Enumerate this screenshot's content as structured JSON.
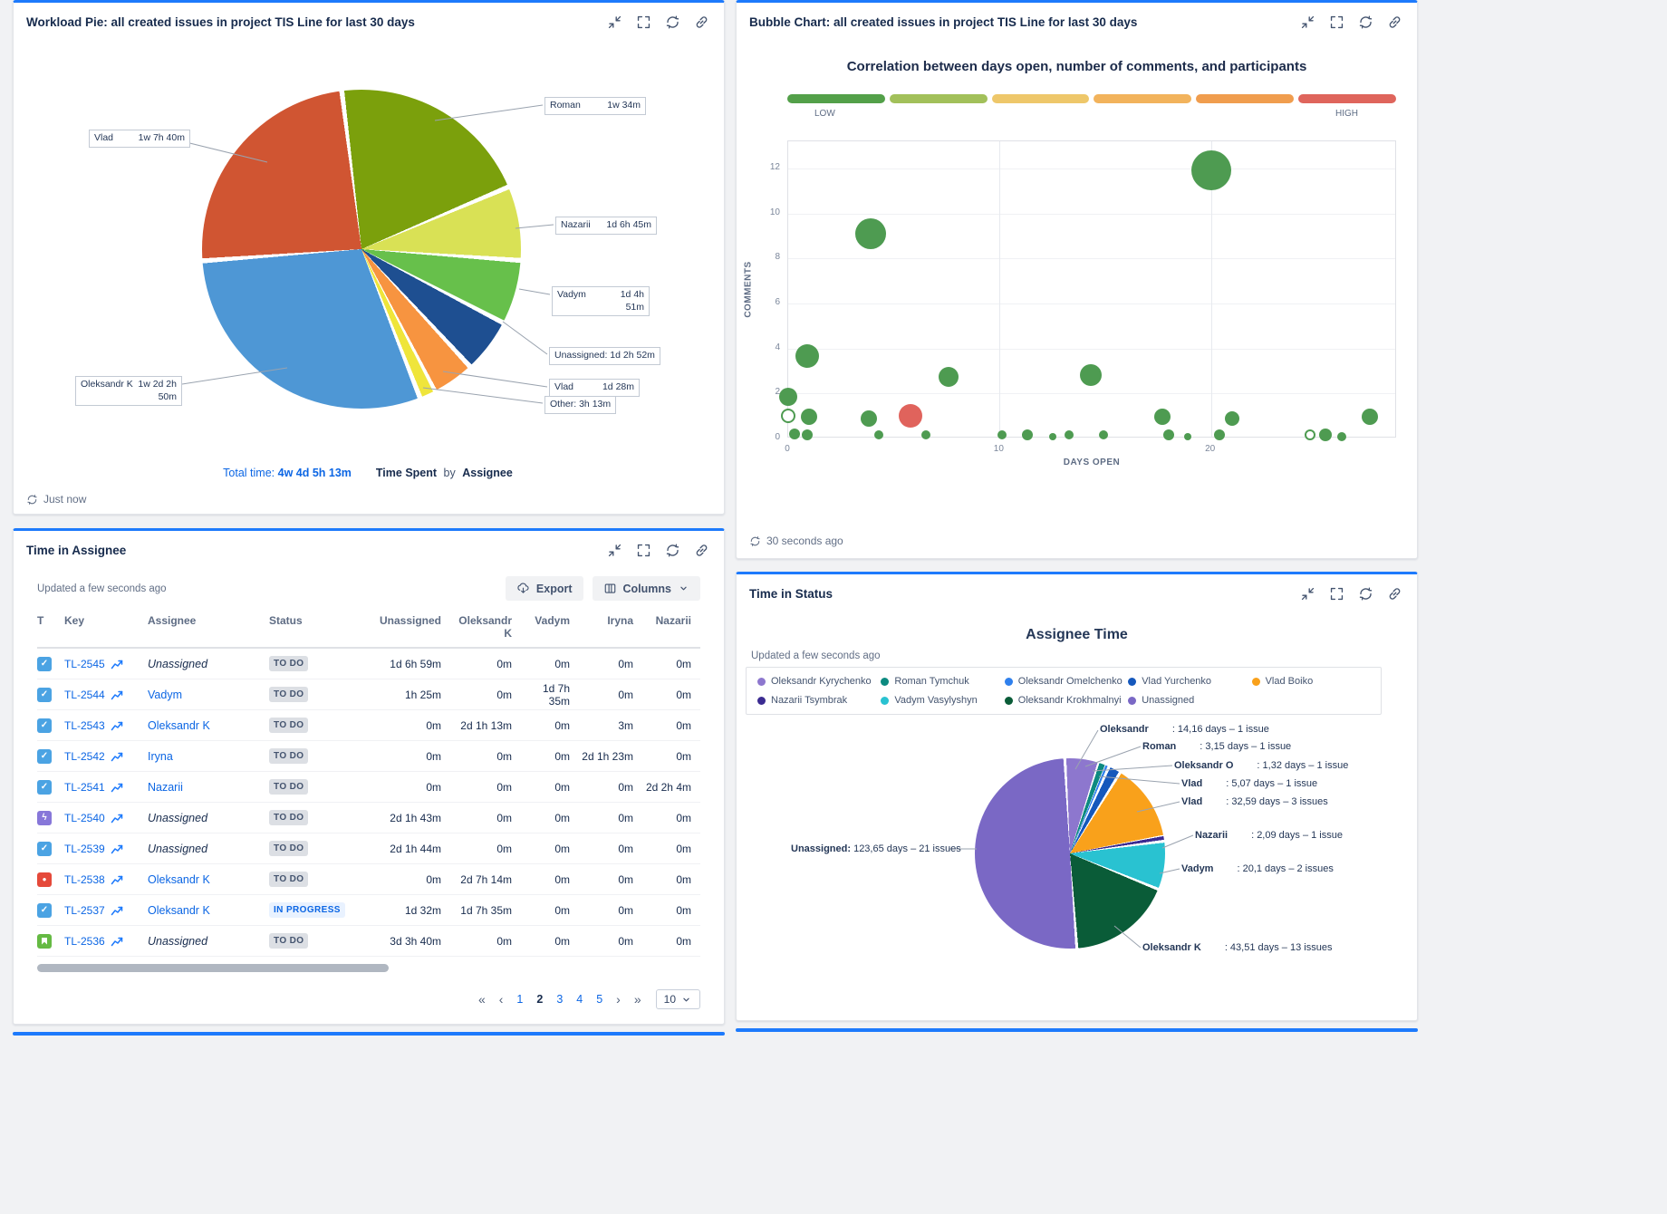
{
  "page": {
    "background": "#f1f2f4",
    "accent": "#1d7afc"
  },
  "workload_pie": {
    "title": "Workload Pie: all created issues in project TIS Line for last 30 days",
    "refresh_status": "Just now",
    "footer": {
      "metric": "Time Spent",
      "by_word": "by",
      "dimension": "Assignee"
    }
  },
  "bubble_chart": {
    "title": "Bubble Chart: all created issues in project TIS Line for last 30 days",
    "chart_title": "Correlation between days open, number of comments, and participants",
    "refresh_status": "30 seconds ago"
  },
  "time_in_assignee": {
    "title": "Time in Assignee",
    "updated": "Updated a few seconds ago",
    "export_label": "Export",
    "columns_label": "Columns",
    "table": {
      "headers": [
        "T",
        "Key",
        "Assignee",
        "Status",
        "Unassigned",
        "Oleksandr K",
        "Vadym",
        "Iryna",
        "Nazarii"
      ],
      "rows": [
        {
          "type": "task",
          "key": "TL-2545",
          "assignee": "Unassigned",
          "status": "TO DO",
          "values": [
            "1d 6h 59m",
            "0m",
            "0m",
            "0m",
            "0m"
          ]
        },
        {
          "type": "task",
          "key": "TL-2544",
          "assignee": "Vadym",
          "status": "TO DO",
          "values": [
            "1h 25m",
            "0m",
            "1d 7h 35m",
            "0m",
            "0m"
          ]
        },
        {
          "type": "task",
          "key": "TL-2543",
          "assignee": "Oleksandr K",
          "status": "TO DO",
          "values": [
            "0m",
            "2d 1h 13m",
            "0m",
            "3m",
            "0m"
          ]
        },
        {
          "type": "task",
          "key": "TL-2542",
          "assignee": "Iryna",
          "status": "TO DO",
          "values": [
            "0m",
            "0m",
            "0m",
            "2d 1h 23m",
            "0m"
          ]
        },
        {
          "type": "task",
          "key": "TL-2541",
          "assignee": "Nazarii",
          "status": "TO DO",
          "values": [
            "0m",
            "0m",
            "0m",
            "0m",
            "2d 2h 4m"
          ]
        },
        {
          "type": "bolt",
          "key": "TL-2540",
          "assignee": "Unassigned",
          "status": "TO DO",
          "values": [
            "2d 1h 43m",
            "0m",
            "0m",
            "0m",
            "0m"
          ]
        },
        {
          "type": "task",
          "key": "TL-2539",
          "assignee": "Unassigned",
          "status": "TO DO",
          "values": [
            "2d 1h 44m",
            "0m",
            "0m",
            "0m",
            "0m"
          ]
        },
        {
          "type": "bug",
          "key": "TL-2538",
          "assignee": "Oleksandr K",
          "status": "TO DO",
          "values": [
            "0m",
            "2d 7h 14m",
            "0m",
            "0m",
            "0m"
          ]
        },
        {
          "type": "task",
          "key": "TL-2537",
          "assignee": "Oleksandr K",
          "status": "IN PROGRESS",
          "values": [
            "1d 32m",
            "1d 7h 35m",
            "0m",
            "0m",
            "0m"
          ]
        },
        {
          "type": "story",
          "key": "TL-2536",
          "assignee": "Unassigned",
          "status": "TO DO",
          "values": [
            "3d 3h 40m",
            "0m",
            "0m",
            "0m",
            "0m"
          ]
        }
      ]
    },
    "pagination": {
      "pages": [
        "1",
        "2",
        "3",
        "4",
        "5"
      ],
      "current": "2",
      "page_size": "10"
    }
  },
  "time_in_status": {
    "title": "Time in Status",
    "updated": "Updated a few seconds ago",
    "chart_title": "Assignee Time",
    "legend": [
      {
        "name": "Oleksandr Kyrychenko",
        "color": "#8d77ce"
      },
      {
        "name": "Roman Tymchuk",
        "color": "#0d8a80"
      },
      {
        "name": "Oleksandr Omelchenko",
        "color": "#2f80ed"
      },
      {
        "name": "Vlad Yurchenko",
        "color": "#1558bc"
      },
      {
        "name": "Vlad Boiko",
        "color": "#f9a11b"
      },
      {
        "name": "Nazarii Tsymbrak",
        "color": "#3b2b91"
      },
      {
        "name": "Vadym Vasylyshyn",
        "color": "#29c2d1"
      },
      {
        "name": "Oleksandr Krokhmalnyi",
        "color": "#0a5c38"
      },
      {
        "name": "Unassigned",
        "color": "#7a68c5"
      }
    ]
  },
  "chart_data": [
    {
      "type": "pie",
      "name": "workload_pie",
      "title": "Time Spent by Assignee",
      "total_label": "Total time:",
      "total": "4w 4d 5h 13m",
      "slices": [
        {
          "label": "Roman",
          "time": "1w 34m",
          "pct": 20.6,
          "color": "#7ba00c"
        },
        {
          "label": "Nazarii",
          "time": "1d 6h 45m",
          "pct": 7.5,
          "color": "#d9e155"
        },
        {
          "label": "Vadym",
          "time": "1d 4h 51m",
          "pct": 6.5,
          "color": "#67c04b"
        },
        {
          "label": "Unassigned",
          "time": "1d 2h 52m",
          "pct": 5.5,
          "color": "#1e4f91",
          "nogap": true
        },
        {
          "label": "Vlad",
          "time": "1d 28m",
          "pct": 4.3,
          "color": "#f79440"
        },
        {
          "label": "Other",
          "time": "3h 13m",
          "pct": 1.6,
          "color": "#efe53b",
          "nogap": true
        },
        {
          "label": "Oleksandr K",
          "time": "1w 2d 2h 50m",
          "pct": 29.8,
          "color": "#4e97d5"
        },
        {
          "label": "Vlad",
          "time": "1w 7h 40m",
          "pct": 24.2,
          "color": "#d05532"
        }
      ]
    },
    {
      "type": "bubble",
      "name": "bubble_chart",
      "title": "Correlation between days open, number of comments, and participants",
      "xlabel": "DAYS OPEN",
      "ylabel": "COMMENTS",
      "xlim": [
        0,
        28.8
      ],
      "ylim": [
        0,
        13.2
      ],
      "x_ticks": [
        0,
        10,
        20
      ],
      "y_ticks": [
        0,
        2,
        4,
        6,
        8,
        10,
        12
      ],
      "color_scale": {
        "low_label": "LOW",
        "high_label": "HIGH",
        "colors": [
          "#53a049",
          "#a2c05a",
          "#eec76a",
          "#f2b35c",
          "#f09d4e",
          "#df655c"
        ]
      },
      "default_color": "#4e9b51",
      "points": [
        {
          "x": 0,
          "y": 1.85,
          "r": 10
        },
        {
          "x": 0,
          "y": 1,
          "r": 8,
          "ring": true
        },
        {
          "x": 0.3,
          "y": 0.2,
          "r": 6
        },
        {
          "x": 0.9,
          "y": 3.65,
          "r": 13
        },
        {
          "x": 1,
          "y": 0.95,
          "r": 9
        },
        {
          "x": 0.9,
          "y": 0.15,
          "r": 6
        },
        {
          "x": 3.9,
          "y": 9.1,
          "r": 17
        },
        {
          "x": 3.8,
          "y": 0.9,
          "r": 9
        },
        {
          "x": 4.3,
          "y": 0.15,
          "r": 5
        },
        {
          "x": 5.8,
          "y": 1,
          "r": 13,
          "color": "#e0635c"
        },
        {
          "x": 6.5,
          "y": 0.15,
          "r": 5
        },
        {
          "x": 7.6,
          "y": 2.75,
          "r": 11
        },
        {
          "x": 10.1,
          "y": 0.15,
          "r": 5
        },
        {
          "x": 11.3,
          "y": 0.15,
          "r": 6
        },
        {
          "x": 12.5,
          "y": 0.1,
          "r": 4
        },
        {
          "x": 13.3,
          "y": 0.15,
          "r": 5
        },
        {
          "x": 14.3,
          "y": 2.8,
          "r": 12
        },
        {
          "x": 14.9,
          "y": 0.15,
          "r": 5
        },
        {
          "x": 17.7,
          "y": 0.95,
          "r": 9
        },
        {
          "x": 18,
          "y": 0.15,
          "r": 6
        },
        {
          "x": 18.9,
          "y": 0.1,
          "r": 4
        },
        {
          "x": 20,
          "y": 11.9,
          "r": 22
        },
        {
          "x": 20.4,
          "y": 0.15,
          "r": 6
        },
        {
          "x": 21,
          "y": 0.9,
          "r": 8
        },
        {
          "x": 24.7,
          "y": 0.15,
          "r": 6,
          "ring": true
        },
        {
          "x": 25.4,
          "y": 0.15,
          "r": 7
        },
        {
          "x": 26.2,
          "y": 0.1,
          "r": 5
        },
        {
          "x": 27.5,
          "y": 0.95,
          "r": 9
        }
      ]
    },
    {
      "type": "pie",
      "name": "assignee_time",
      "title": "Assignee Time",
      "slices": [
        {
          "label": "Oleksandr",
          "text": "14,16 days – 1 issue",
          "days": 14.16,
          "issues": 1,
          "pct": 5.8,
          "color": "#8d77ce"
        },
        {
          "label": "Roman",
          "text": "3,15 days – 1 issue",
          "days": 3.15,
          "issues": 1,
          "pct": 1.3,
          "color": "#0d8a80"
        },
        {
          "label": "Oleksandr O",
          "text": "1,32 days – 1 issue",
          "days": 1.32,
          "issues": 1,
          "pct": 0.5,
          "color": "#2f80ed"
        },
        {
          "label": "Vlad",
          "text": "5,07 days – 1 issue",
          "days": 5.07,
          "issues": 1,
          "pct": 2.1,
          "color": "#1558bc"
        },
        {
          "label": "Vlad",
          "text": "32,59 days – 3 issues",
          "days": 32.59,
          "issues": 3,
          "pct": 13.3,
          "color": "#f9a11b"
        },
        {
          "label": "Nazarii",
          "text": "2,09 days – 1 issue",
          "days": 2.09,
          "issues": 1,
          "pct": 0.8,
          "color": "#3b2b91"
        },
        {
          "label": "Vadym",
          "text": "20,1 days – 2 issues",
          "days": 20.1,
          "issues": 2,
          "pct": 8.2,
          "color": "#29c2d1"
        },
        {
          "label": "Oleksandr K",
          "text": "43,51 days – 13 issues",
          "days": 43.51,
          "issues": 13,
          "pct": 17.7,
          "color": "#0a5c38"
        },
        {
          "label": "Unassigned",
          "text": "123,65 days – 21 issues",
          "days": 123.65,
          "issues": 21,
          "pct": 50.3,
          "color": "#7a68c5",
          "nogap": true
        }
      ]
    }
  ]
}
